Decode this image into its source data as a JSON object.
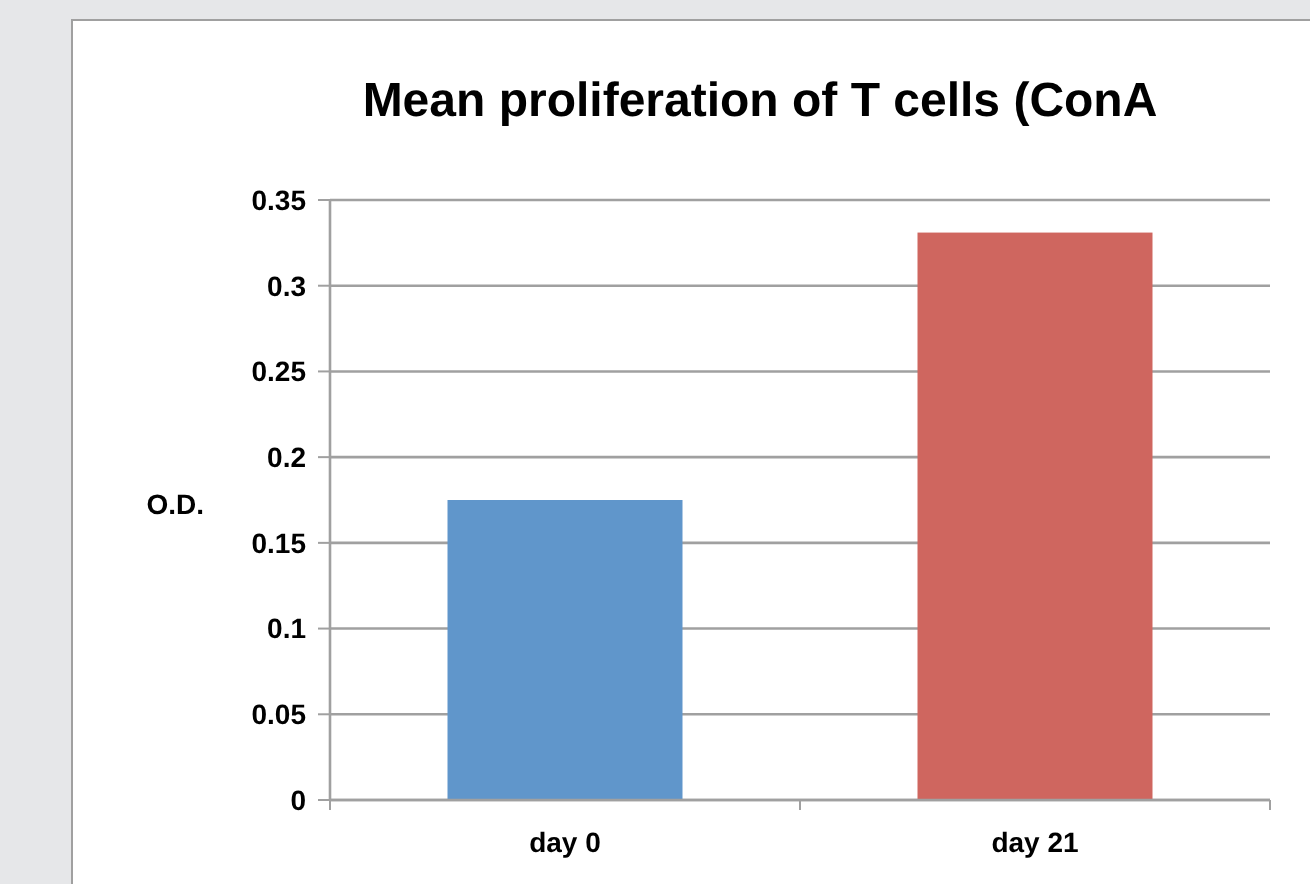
{
  "chart_data": {
    "type": "bar",
    "title": "Mean proliferation of T cells (ConA",
    "ylabel": "O.D.",
    "categories": [
      "day 0",
      "day 21"
    ],
    "values": [
      0.175,
      0.331
    ],
    "colors": [
      "#6096cb",
      "#cf665f"
    ],
    "ylim": [
      0,
      0.35
    ],
    "yticks": [
      0,
      0.05,
      0.1,
      0.15,
      0.2,
      0.25,
      0.3,
      0.35
    ],
    "grid": "y"
  }
}
